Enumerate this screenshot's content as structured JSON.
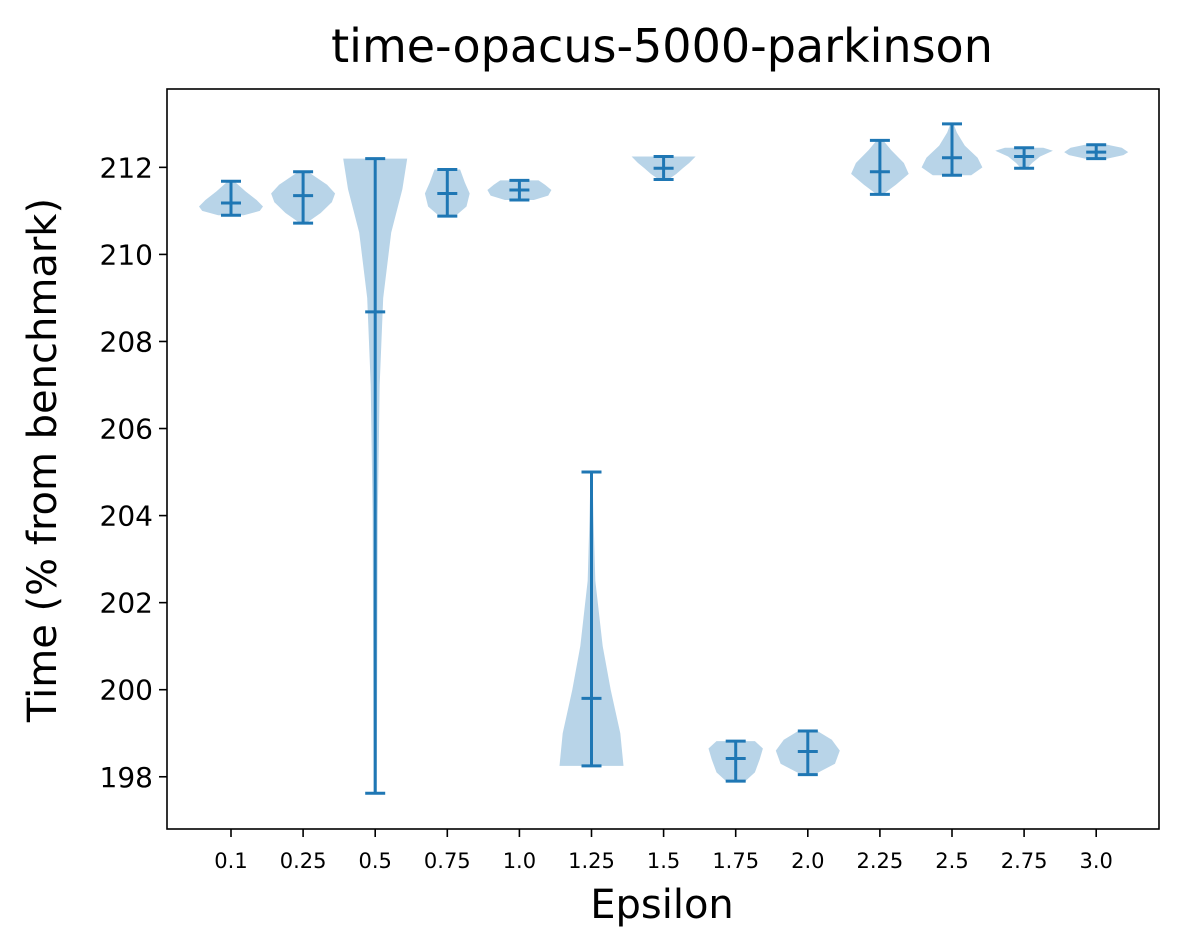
{
  "chart_data": {
    "type": "violin",
    "title": "time-opacus-5000-parkinson",
    "xlabel": "Epsilon",
    "ylabel": "Time (% from benchmark)",
    "categories": [
      "0.1",
      "0.25",
      "0.5",
      "0.75",
      "1.0",
      "1.25",
      "1.5",
      "1.75",
      "2.0",
      "2.25",
      "2.5",
      "2.75",
      "3.0"
    ],
    "ylim": [
      196.8,
      213.8
    ],
    "yticks": [
      198,
      200,
      202,
      204,
      206,
      208,
      210,
      212
    ],
    "grid": false,
    "colors": {
      "body": "#b8d4e8",
      "line": "#1f77b4"
    },
    "violins": [
      {
        "category": "0.1",
        "min": 210.9,
        "median": 211.18,
        "max": 211.68,
        "profile": [
          [
            210.9,
            0.4
          ],
          [
            211.0,
            0.9
          ],
          [
            211.1,
            1.0
          ],
          [
            211.25,
            0.8
          ],
          [
            211.45,
            0.45
          ],
          [
            211.68,
            0.1
          ]
        ]
      },
      {
        "category": "0.25",
        "min": 210.72,
        "median": 211.35,
        "max": 211.9,
        "profile": [
          [
            210.72,
            0.1
          ],
          [
            210.95,
            0.55
          ],
          [
            211.2,
            0.9
          ],
          [
            211.4,
            1.0
          ],
          [
            211.6,
            0.75
          ],
          [
            211.9,
            0.15
          ]
        ]
      },
      {
        "category": "0.5",
        "min": 197.62,
        "median": 208.68,
        "max": 212.2,
        "profile": [
          [
            197.62,
            0.05
          ],
          [
            200.0,
            0.06
          ],
          [
            204.0,
            0.08
          ],
          [
            207.0,
            0.14
          ],
          [
            209.0,
            0.25
          ],
          [
            210.5,
            0.5
          ],
          [
            211.5,
            0.85
          ],
          [
            212.2,
            1.0
          ]
        ]
      },
      {
        "category": "0.75",
        "min": 210.88,
        "median": 211.4,
        "max": 211.95,
        "profile": [
          [
            210.88,
            0.25
          ],
          [
            211.1,
            0.6
          ],
          [
            211.4,
            0.7
          ],
          [
            211.65,
            0.55
          ],
          [
            211.95,
            0.4
          ]
        ]
      },
      {
        "category": "1.0",
        "min": 211.25,
        "median": 211.48,
        "max": 211.7,
        "profile": [
          [
            211.25,
            0.45
          ],
          [
            211.35,
            0.9
          ],
          [
            211.48,
            1.0
          ],
          [
            211.6,
            0.8
          ],
          [
            211.7,
            0.6
          ]
        ]
      },
      {
        "category": "1.25",
        "min": 198.25,
        "median": 199.8,
        "max": 205.0,
        "profile": [
          [
            198.25,
            1.0
          ],
          [
            199.0,
            0.9
          ],
          [
            200.0,
            0.6
          ],
          [
            201.0,
            0.35
          ],
          [
            202.5,
            0.12
          ],
          [
            204.0,
            0.06
          ],
          [
            205.0,
            0.03
          ]
        ]
      },
      {
        "category": "1.5",
        "min": 211.72,
        "median": 211.98,
        "max": 212.25,
        "profile": [
          [
            211.72,
            0.15
          ],
          [
            211.85,
            0.4
          ],
          [
            211.98,
            0.6
          ],
          [
            212.1,
            0.8
          ],
          [
            212.25,
            1.0
          ]
        ]
      },
      {
        "category": "1.75",
        "min": 197.9,
        "median": 198.42,
        "max": 198.82,
        "profile": [
          [
            197.9,
            0.3
          ],
          [
            198.1,
            0.6
          ],
          [
            198.4,
            0.75
          ],
          [
            198.65,
            0.85
          ],
          [
            198.82,
            0.6
          ]
        ]
      },
      {
        "category": "2.0",
        "min": 198.05,
        "median": 198.58,
        "max": 199.05,
        "profile": [
          [
            198.05,
            0.2
          ],
          [
            198.3,
            0.85
          ],
          [
            198.6,
            1.0
          ],
          [
            198.85,
            0.75
          ],
          [
            199.05,
            0.3
          ]
        ]
      },
      {
        "category": "2.25",
        "min": 211.38,
        "median": 211.9,
        "max": 212.62,
        "profile": [
          [
            211.38,
            0.1
          ],
          [
            211.6,
            0.5
          ],
          [
            211.85,
            0.9
          ],
          [
            212.1,
            0.75
          ],
          [
            212.4,
            0.35
          ],
          [
            212.62,
            0.1
          ]
        ]
      },
      {
        "category": "2.5",
        "min": 211.82,
        "median": 212.22,
        "max": 213.0,
        "profile": [
          [
            211.82,
            0.6
          ],
          [
            212.0,
            0.95
          ],
          [
            212.22,
            0.8
          ],
          [
            212.5,
            0.4
          ],
          [
            212.8,
            0.15
          ],
          [
            213.0,
            0.05
          ]
        ]
      },
      {
        "category": "2.75",
        "min": 211.98,
        "median": 212.25,
        "max": 212.45,
        "profile": [
          [
            211.98,
            0.1
          ],
          [
            212.1,
            0.25
          ],
          [
            212.25,
            0.5
          ],
          [
            212.38,
            0.9
          ],
          [
            212.45,
            0.6
          ]
        ]
      },
      {
        "category": "3.0",
        "min": 212.2,
        "median": 212.35,
        "max": 212.52,
        "profile": [
          [
            212.2,
            0.35
          ],
          [
            212.28,
            0.85
          ],
          [
            212.35,
            1.0
          ],
          [
            212.45,
            0.8
          ],
          [
            212.52,
            0.35
          ]
        ]
      }
    ]
  }
}
